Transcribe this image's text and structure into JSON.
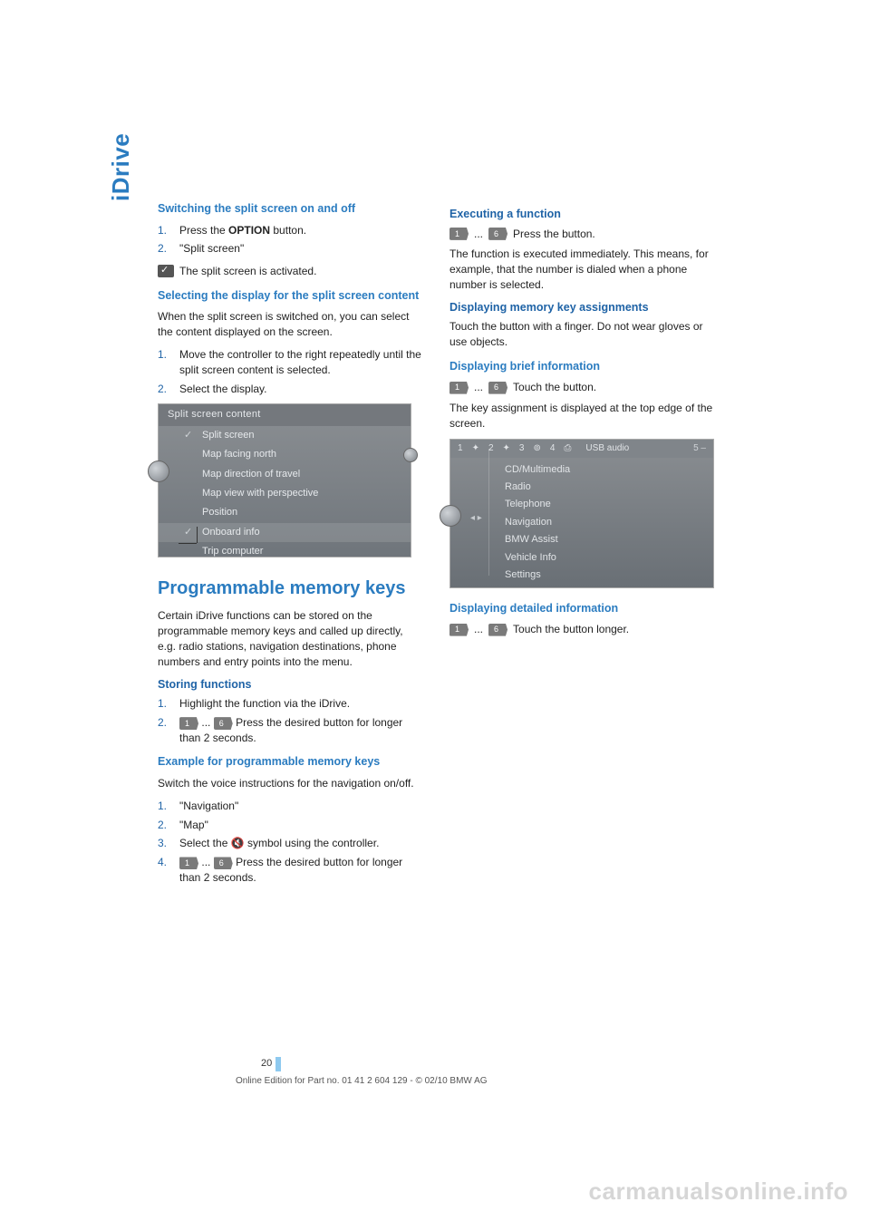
{
  "sidetab": "iDrive",
  "colors": {
    "accent": "#2b7cc0",
    "accent_dark": "#1f63a6",
    "text": "#222222"
  },
  "left": {
    "sec1": {
      "title": "Switching the split screen on and off",
      "step1_pre": "Press the ",
      "step1_bold": "OPTION",
      "step1_post": " button.",
      "step2": "\"Split screen\"",
      "activated": "The split screen is activated."
    },
    "sec2": {
      "title": "Selecting the display for the split screen content",
      "intro": "When the split screen is switched on, you can select the content displayed on the screen.",
      "step1": "Move the controller to the right repeatedly until the split screen content is selected.",
      "step2": "Select the display."
    },
    "mock1": {
      "title": "Split screen content",
      "items": [
        "Split screen",
        "Map facing north",
        "Map direction of travel",
        "Map view with perspective",
        "Position",
        "Onboard info",
        "Trip computer"
      ],
      "checked_idx": 0,
      "selected_idx": 5
    },
    "h2": "Programmable memory keys",
    "pmk_intro": "Certain iDrive functions can be stored on the programmable memory keys and called up directly, e.g. radio stations, navigation destinations, phone numbers and entry points into the menu.",
    "storing": {
      "title": "Storing functions",
      "step1": "Highlight the function via the iDrive.",
      "btn_a": "1",
      "btn_b": "6",
      "step2_tail": "Press the desired button for longer than 2 seconds."
    },
    "example": {
      "title": "Example for programmable memory keys",
      "intro": "Switch the voice instructions for the navigation on/off.",
      "s1": "\"Navigation\"",
      "s2": "\"Map\"",
      "s3_pre": "Select the ",
      "s3_post": " symbol using the controller.",
      "btn_a": "1",
      "btn_b": "6",
      "s4_tail": "Press the desired button for longer than 2 seconds."
    }
  },
  "right": {
    "exec": {
      "title": "Executing a function",
      "btn_a": "1",
      "btn_b": "6",
      "txt": "Press the button.",
      "body": "The function is executed immediately. This means, for example, that the number is dialed when a phone number is selected."
    },
    "assign": {
      "title": "Displaying memory key assignments",
      "body": "Touch the button with a finger. Do not wear gloves or use objects."
    },
    "brief": {
      "title": "Displaying brief information",
      "btn_a": "1",
      "btn_b": "6",
      "txt": "Touch the button.",
      "body": "The key assignment is displayed at the top edge of the screen."
    },
    "mock2": {
      "top_nums": [
        "1",
        "2",
        "3",
        "4"
      ],
      "top_label": "USB audio",
      "top_end": "5",
      "menu": [
        "CD/Multimedia",
        "Radio",
        "Telephone",
        "Navigation",
        "BMW Assist",
        "Vehicle Info",
        "Settings"
      ]
    },
    "detail": {
      "title": "Displaying detailed information",
      "btn_a": "1",
      "btn_b": "6",
      "txt": "Touch the button longer."
    }
  },
  "footer": {
    "page": "20",
    "line": "Online Edition for Part no. 01 41 2 604 129 - © 02/10 BMW AG"
  },
  "watermark": "carmanualsonline.info"
}
